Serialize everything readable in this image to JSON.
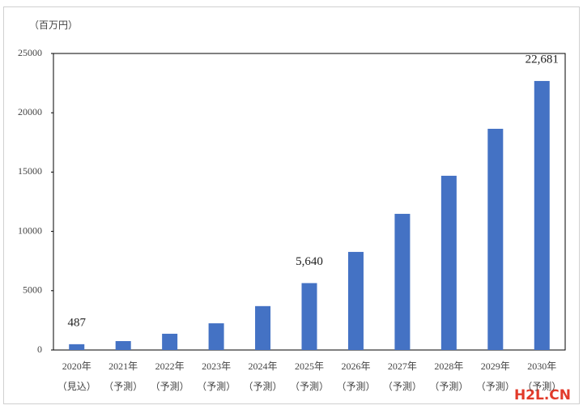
{
  "chart_data": {
    "type": "bar",
    "unit_label": "（百万円）",
    "categories": [
      "2020年",
      "2021年",
      "2022年",
      "2023年",
      "2024年",
      "2025年",
      "2026年",
      "2027年",
      "2028年",
      "2029年",
      "2030年"
    ],
    "category_notes": [
      "（見込）",
      "（予測）",
      "（予測）",
      "（予測）",
      "（予測）",
      "（予測）",
      "（予測）",
      "（予測）",
      "（予測）",
      "（予測）",
      "（予測）"
    ],
    "values": [
      487,
      750,
      1370,
      2250,
      3700,
      5640,
      8270,
      11480,
      14690,
      18650,
      22681
    ],
    "value_labels": [
      "487",
      null,
      null,
      null,
      null,
      "5,640",
      null,
      null,
      null,
      null,
      "22,681"
    ],
    "color": "#4472c4",
    "ylim": [
      0,
      25000
    ],
    "yticks": [
      0,
      5000,
      10000,
      15000,
      20000,
      25000
    ],
    "grid": false
  },
  "watermark": "H2L.CN"
}
